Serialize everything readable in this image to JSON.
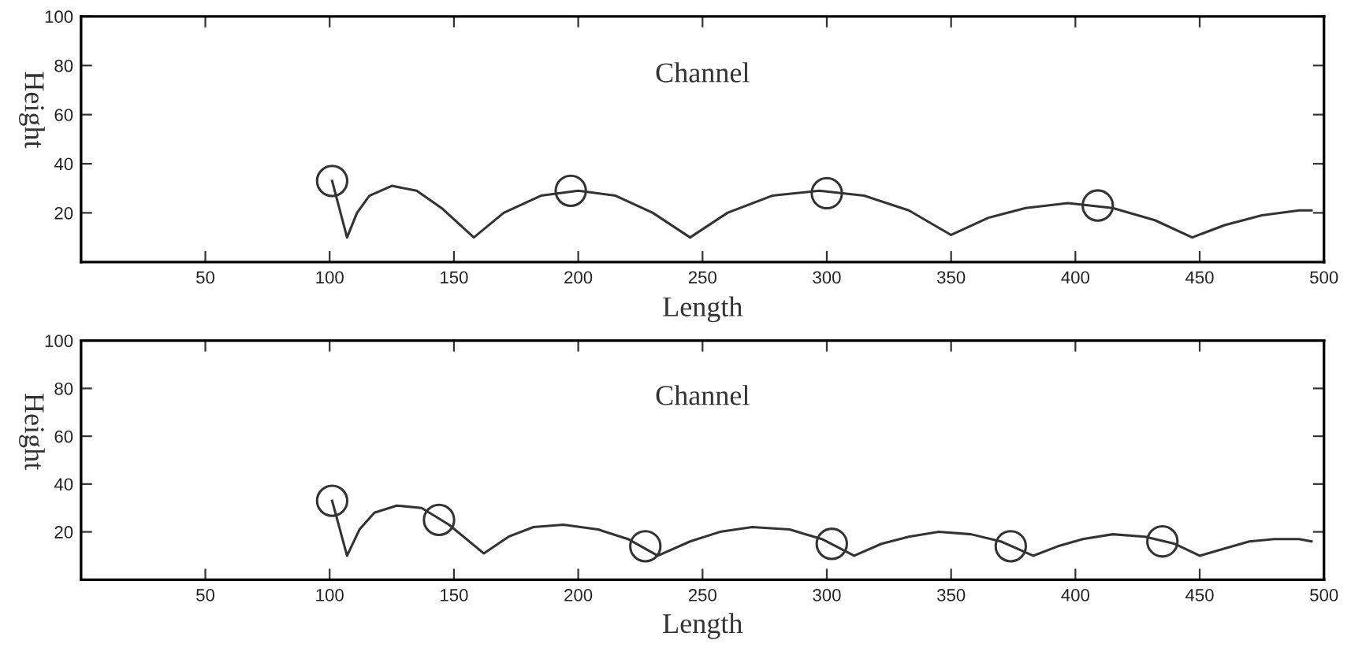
{
  "chart_data": [
    {
      "type": "line",
      "xlabel": "Length",
      "ylabel": "Height",
      "annotations": [
        "Channel"
      ],
      "xlim": [
        0,
        500
      ],
      "ylim": [
        0,
        100
      ],
      "xticks": [
        50,
        100,
        150,
        200,
        250,
        300,
        350,
        400,
        450,
        500
      ],
      "yticks": [
        20,
        40,
        60,
        80,
        100
      ],
      "grid": false,
      "legend": false,
      "series": [
        {
          "color": "#333333",
          "marker": "none",
          "x": [
            101,
            107,
            111,
            116,
            125,
            135,
            145,
            158,
            170,
            185,
            200,
            215,
            230,
            245,
            260,
            278,
            297,
            315,
            333,
            350,
            365,
            380,
            397,
            415,
            432,
            447,
            460,
            475,
            490,
            495
          ],
          "values": [
            33,
            10,
            20,
            27,
            31,
            29,
            22,
            10,
            20,
            27,
            29,
            27,
            20,
            10,
            20,
            27,
            29,
            27,
            21,
            11,
            18,
            22,
            24,
            22,
            17,
            10,
            15,
            19,
            21,
            21
          ]
        },
        {
          "type": "scatter",
          "color": "#333333",
          "marker": "circle",
          "x": [
            101,
            197,
            300,
            409
          ],
          "values": [
            33,
            29,
            28,
            23
          ]
        }
      ]
    },
    {
      "type": "line",
      "xlabel": "Length",
      "ylabel": "Height",
      "annotations": [
        "Channel"
      ],
      "xlim": [
        0,
        500
      ],
      "ylim": [
        0,
        100
      ],
      "xticks": [
        50,
        100,
        150,
        200,
        250,
        300,
        350,
        400,
        450,
        500
      ],
      "yticks": [
        20,
        40,
        60,
        80,
        100
      ],
      "grid": false,
      "legend": false,
      "series": [
        {
          "color": "#333333",
          "marker": "none",
          "x": [
            101,
            107,
            112,
            118,
            127,
            137,
            148,
            162,
            172,
            182,
            194,
            208,
            220,
            232,
            245,
            257,
            270,
            285,
            298,
            311,
            322,
            333,
            345,
            358,
            370,
            383,
            393,
            403,
            415,
            428,
            440,
            450,
            460,
            470,
            480,
            490,
            495
          ],
          "values": [
            33,
            10,
            21,
            28,
            31,
            30,
            23,
            11,
            18,
            22,
            23,
            21,
            17,
            10,
            16,
            20,
            22,
            21,
            17,
            10,
            15,
            18,
            20,
            19,
            16,
            10,
            14,
            17,
            19,
            18,
            15,
            10,
            13,
            16,
            17,
            17,
            16
          ]
        },
        {
          "type": "scatter",
          "color": "#333333",
          "marker": "circle",
          "x": [
            101,
            144,
            227,
            302,
            374,
            435
          ],
          "values": [
            33,
            25,
            14,
            15,
            14,
            16
          ]
        }
      ]
    }
  ]
}
